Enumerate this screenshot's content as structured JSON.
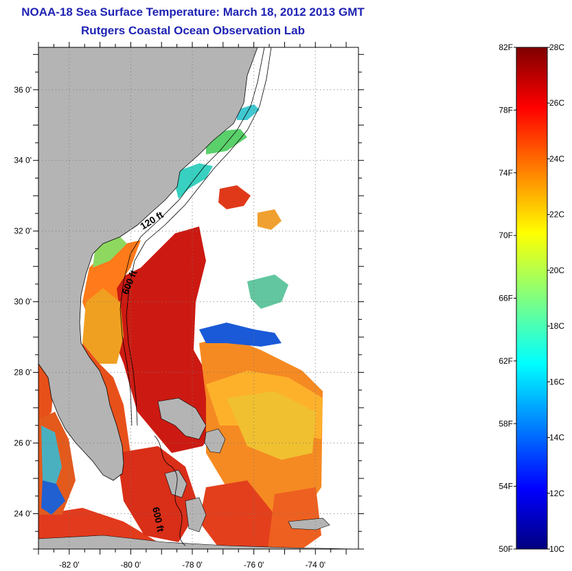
{
  "title": "NOAA-18 Sea Surface Temperature:  March 18, 2012 2013 GMT",
  "subtitle": "Rutgers Coastal Ocean Observation Lab",
  "map": {
    "lon_range": [
      -83,
      -72.6
    ],
    "lat_range": [
      23,
      37.2
    ],
    "x_tick_labels": [
      {
        "lon": -82,
        "label": "-82 0'"
      },
      {
        "lon": -80,
        "label": "-80 0'"
      },
      {
        "lon": -78,
        "label": "-78 0'"
      },
      {
        "lon": -76,
        "label": "-76 0'"
      },
      {
        "lon": -74,
        "label": "-74 0'"
      }
    ],
    "y_tick_labels": [
      {
        "lat": 36,
        "label": "36 0'"
      },
      {
        "lat": 34,
        "label": "34 0'"
      },
      {
        "lat": 32,
        "label": "32 0'"
      },
      {
        "lat": 30,
        "label": "30 0'"
      },
      {
        "lat": 28,
        "label": "28 0'"
      },
      {
        "lat": 26,
        "label": "26 0'"
      },
      {
        "lat": 24,
        "label": "24 0'"
      }
    ],
    "contour_labels": [
      "120 ft",
      "600 ft",
      "600 ft"
    ],
    "land_color": "#b4b4b4",
    "grid": "dotted"
  },
  "colorbar": {
    "range_c": [
      10,
      28
    ],
    "range_f": [
      50,
      82
    ],
    "celsius_labels": [
      "28C",
      "26C",
      "24C",
      "22C",
      "20C",
      "18C",
      "16C",
      "14C",
      "12C",
      "10C"
    ],
    "fahrenheit_labels": [
      "82F",
      "78F",
      "74F",
      "70F",
      "66F",
      "62F",
      "58F",
      "54F",
      "50F"
    ],
    "colormap": "jet"
  }
}
